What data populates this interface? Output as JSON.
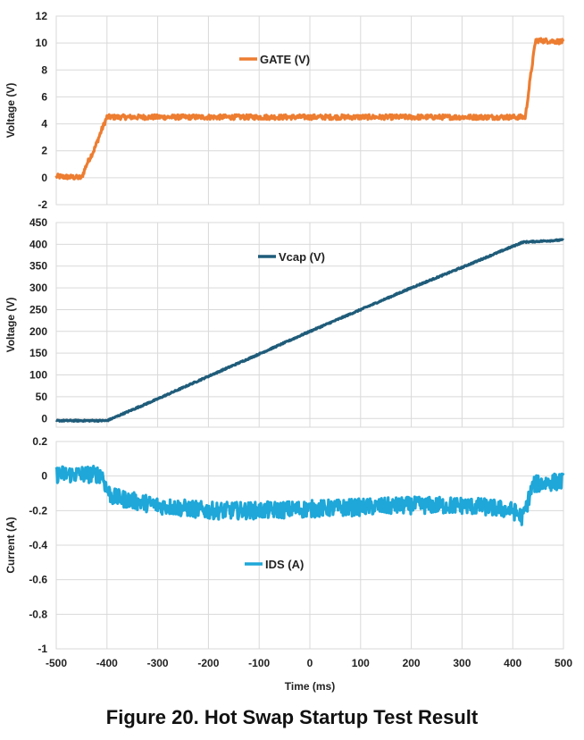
{
  "figure_caption": "Figure 20. Hot Swap Startup Test Result",
  "chart_data": [
    {
      "type": "line",
      "panel": "gate",
      "ylabel": "Voltage (V)",
      "xlabel": "",
      "ylim": [
        -2,
        12
      ],
      "yticks": [
        -2,
        0,
        2,
        4,
        6,
        8,
        10,
        12
      ],
      "xlim": [
        -500,
        500
      ],
      "grid": true,
      "legend_position": "top-center",
      "series": [
        {
          "name": "GATE (V)",
          "color": "#ED7D31",
          "noise": 0.18,
          "x": [
            -500,
            -450,
            -440,
            -425,
            -410,
            -400,
            425,
            435,
            445,
            500
          ],
          "y": [
            0.1,
            0.0,
            1.0,
            2.1,
            3.6,
            4.5,
            4.5,
            7.5,
            10.2,
            10.1
          ]
        }
      ]
    },
    {
      "type": "line",
      "panel": "vcap",
      "ylabel": "Voltage (V)",
      "xlabel": "",
      "ylim": [
        -20,
        450
      ],
      "yticks": [
        0,
        50,
        100,
        150,
        200,
        250,
        300,
        350,
        400,
        450
      ],
      "xlim": [
        -500,
        500
      ],
      "grid": true,
      "legend_position": "top-center",
      "series": [
        {
          "name": "Vcap (V)",
          "color": "#1F5C7A",
          "noise": 1.5,
          "x": [
            -500,
            -400,
            -300,
            -200,
            -100,
            0,
            100,
            200,
            300,
            420,
            500
          ],
          "y": [
            -5,
            -5,
            45,
            97,
            148,
            200,
            250,
            300,
            347,
            405,
            410
          ]
        }
      ]
    },
    {
      "type": "line",
      "panel": "ids",
      "ylabel": "Current (A)",
      "xlabel": "Time (ms)",
      "ylim": [
        -1,
        0.2
      ],
      "yticks": [
        -1,
        -0.8,
        -0.6,
        -0.4,
        -0.2,
        0,
        0.2
      ],
      "xlim": [
        -500,
        500
      ],
      "xticks": [
        -500,
        -400,
        -300,
        -200,
        -100,
        0,
        100,
        200,
        300,
        400,
        500
      ],
      "grid": true,
      "legend_position": "center",
      "series": [
        {
          "name": "IDS (A)",
          "color": "#1EA7D8",
          "noise": 0.05,
          "x": [
            -500,
            -410,
            -400,
            -390,
            -300,
            -200,
            -100,
            0,
            100,
            200,
            300,
            350,
            400,
            420,
            440,
            460,
            500
          ],
          "y": [
            0.01,
            0.01,
            -0.08,
            -0.12,
            -0.17,
            -0.2,
            -0.2,
            -0.19,
            -0.18,
            -0.17,
            -0.17,
            -0.18,
            -0.2,
            -0.24,
            -0.05,
            -0.04,
            -0.03
          ]
        }
      ]
    }
  ]
}
